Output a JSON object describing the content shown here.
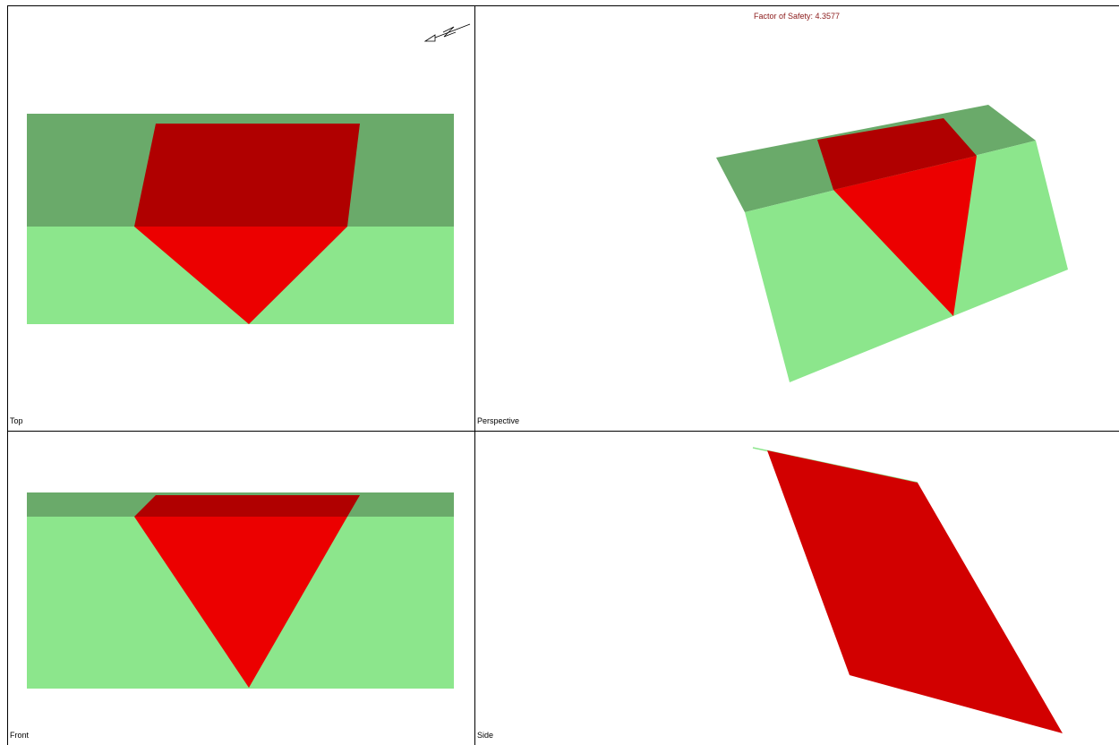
{
  "views": {
    "top": {
      "label": "Top"
    },
    "perspective": {
      "label": "Perspective"
    },
    "front": {
      "label": "Front"
    },
    "side": {
      "label": "Side"
    }
  },
  "analysis": {
    "factor_of_safety": "Factor of Safety: 4.3577"
  },
  "icons": {
    "north_arrow": "north-arrow-icon"
  },
  "colors": {
    "slope_face": "#8ce68c",
    "upper_face": "#6aaa6a",
    "wedge_face": "#ec0000",
    "wedge_top": "#b00000",
    "wedge_side": "#d20000",
    "fos_text": "#8b1a1a",
    "divider": "#000000",
    "background": "#ffffff"
  }
}
